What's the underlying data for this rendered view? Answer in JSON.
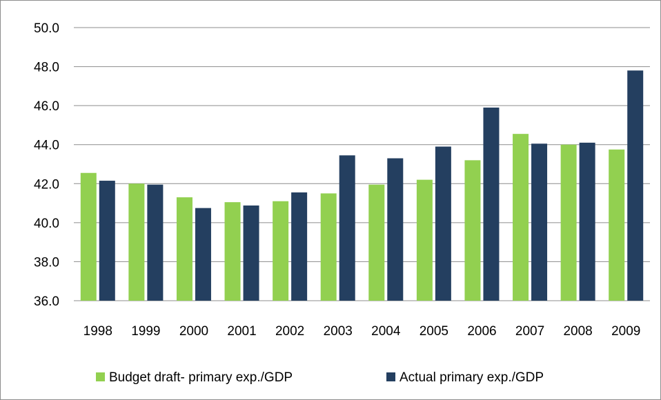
{
  "chart_data": {
    "type": "bar",
    "categories": [
      "1998",
      "1999",
      "2000",
      "2001",
      "2002",
      "2003",
      "2004",
      "2005",
      "2006",
      "2007",
      "2008",
      "2009"
    ],
    "series": [
      {
        "name": "Budget draft- primary exp./GDP",
        "color": "#92d050",
        "values": [
          42.55,
          42.0,
          41.3,
          41.05,
          41.1,
          41.5,
          41.95,
          42.2,
          43.2,
          44.55,
          44.0,
          43.75
        ]
      },
      {
        "name": "Actual primary exp./GDP",
        "color": "#243f60",
        "values": [
          42.15,
          41.95,
          40.75,
          40.88,
          41.55,
          43.45,
          43.3,
          43.9,
          45.9,
          44.05,
          44.1,
          47.8
        ]
      }
    ],
    "ylim": [
      36.0,
      50.0
    ],
    "yticks": [
      "36.0",
      "38.0",
      "40.0",
      "42.0",
      "44.0",
      "46.0",
      "48.0",
      "50.0"
    ],
    "grid": true,
    "legend_position": "bottom"
  }
}
